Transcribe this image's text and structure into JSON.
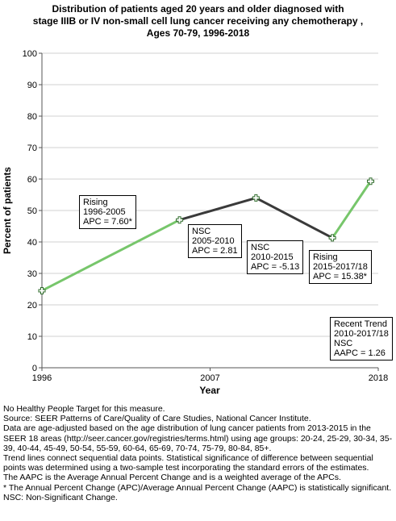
{
  "title_lines": [
    "Distribution of patients aged 20 years and older diagnosed with",
    "stage IIIB or IV non-small cell lung cancer receiving any chemotherapy ,",
    "Ages 70-79,  1996-2018"
  ],
  "chart_data": {
    "type": "line",
    "xlabel": "Year",
    "ylabel": "Percent of patients",
    "xlim": [
      1996,
      2018
    ],
    "ylim": [
      0,
      100
    ],
    "x_ticks": [
      "1996",
      "2007",
      "2018"
    ],
    "y_ticks": [
      "0",
      "10",
      "20",
      "30",
      "40",
      "50",
      "60",
      "70",
      "80",
      "90",
      "100"
    ],
    "points": [
      {
        "x": 1996,
        "y": 24.5
      },
      {
        "x": 2005,
        "y": 47.0
      },
      {
        "x": 2010,
        "y": 54.0
      },
      {
        "x": 2015,
        "y": 41.3
      },
      {
        "x": 2017.5,
        "y": 59.3
      }
    ],
    "segments": [
      {
        "from": 0,
        "to": 1,
        "color": "#77c66b"
      },
      {
        "from": 1,
        "to": 2,
        "color": "#3a3a3a"
      },
      {
        "from": 2,
        "to": 3,
        "color": "#3a3a3a"
      },
      {
        "from": 3,
        "to": 4,
        "color": "#77c66b"
      }
    ],
    "grid": true,
    "annotations": [
      {
        "lines": [
          "Rising",
          "1996-2005",
          "APC =  7.60*"
        ]
      },
      {
        "lines": [
          "NSC",
          "2005-2010",
          "APC =  2.81"
        ]
      },
      {
        "lines": [
          "NSC",
          "2010-2015",
          "APC = -5.13"
        ]
      },
      {
        "lines": [
          "Rising",
          "2015-2017/18",
          "APC = 15.38*"
        ]
      },
      {
        "lines": [
          "Recent Trend",
          "2010-2017/18",
          "NSC",
          "AAPC =  1.26"
        ]
      }
    ]
  },
  "footer_lines": [
    "No Healthy People Target for this measure.",
    "Source: SEER Patterns of Care/Quality of Care Studies, National Cancer Institute.",
    "Data are age-adjusted based on the age distribution of lung cancer patients from 2013-2015 in the SEER 18 areas (http://seer.cancer.gov/registries/terms.html) using age groups: 20-24, 25-29, 30-34, 35-39, 40-44, 45-49, 50-54, 55-59, 60-64, 65-69, 70-74, 75-79, 80-84, 85+.",
    "Trend lines connect sequential data points. Statistical significance of difference between sequential points was determined using a two-sample test incorporating the standard errors of the estimates.",
    "The AAPC is the Average Annual Percent Change and is a weighted average of the APCs.",
    "* The Annual Percent Change (APC)/Average Annual Percent Change (AAPC) is statistically significant.",
    "NSC: Non-Significant Change."
  ]
}
